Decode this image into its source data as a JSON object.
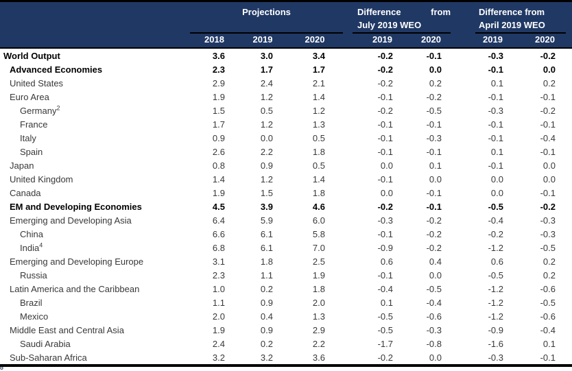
{
  "colors": {
    "header_bg": "#203864",
    "header_text": "#FFFFFF",
    "body_text": "#383838",
    "bold_text": "#000000",
    "border": "#000000"
  },
  "header": {
    "projections_label": "Projections",
    "july_group": {
      "line1_left": "Difference",
      "line1_right": "from",
      "line2": "July 2019 WEO"
    },
    "april_group": {
      "line1": "Difference from",
      "line2": "April 2019 WEO"
    },
    "proj_years": [
      "2018",
      "2019",
      "2020"
    ],
    "july_years": [
      "2019",
      "2020"
    ],
    "april_years": [
      "2019",
      "2020"
    ]
  },
  "footnote_fragment": "o",
  "chart_data": {
    "type": "table",
    "columns": [
      "2018",
      "2019",
      "2020",
      "Diff July 2019 WEO: 2019",
      "Diff July 2019 WEO: 2020",
      "Diff April 2019 WEO: 2019",
      "Diff April 2019 WEO: 2020"
    ],
    "rows": [
      {
        "label": "World Output",
        "sup": "",
        "indent": 0,
        "bold": true,
        "values": [
          "3.6",
          "3.0",
          "3.4",
          "-0.2",
          "-0.1",
          "-0.3",
          "-0.2"
        ]
      },
      {
        "label": "Advanced Economies",
        "sup": "",
        "indent": 1,
        "bold": true,
        "values": [
          "2.3",
          "1.7",
          "1.7",
          "-0.2",
          "0.0",
          "-0.1",
          "0.0"
        ]
      },
      {
        "label": "United States",
        "sup": "",
        "indent": 1,
        "bold": false,
        "values": [
          "2.9",
          "2.4",
          "2.1",
          "-0.2",
          "0.2",
          "0.1",
          "0.2"
        ]
      },
      {
        "label": "Euro Area",
        "sup": "",
        "indent": 1,
        "bold": false,
        "values": [
          "1.9",
          "1.2",
          "1.4",
          "-0.1",
          "-0.2",
          "-0.1",
          "-0.1"
        ]
      },
      {
        "label": "Germany",
        "sup": "2",
        "indent": 2,
        "bold": false,
        "values": [
          "1.5",
          "0.5",
          "1.2",
          "-0.2",
          "-0.5",
          "-0.3",
          "-0.2"
        ]
      },
      {
        "label": "France",
        "sup": "",
        "indent": 2,
        "bold": false,
        "values": [
          "1.7",
          "1.2",
          "1.3",
          "-0.1",
          "-0.1",
          "-0.1",
          "-0.1"
        ]
      },
      {
        "label": "Italy",
        "sup": "",
        "indent": 2,
        "bold": false,
        "values": [
          "0.9",
          "0.0",
          "0.5",
          "-0.1",
          "-0.3",
          "-0.1",
          "-0.4"
        ]
      },
      {
        "label": "Spain",
        "sup": "",
        "indent": 2,
        "bold": false,
        "values": [
          "2.6",
          "2.2",
          "1.8",
          "-0.1",
          "-0.1",
          "0.1",
          "-0.1"
        ]
      },
      {
        "label": "Japan",
        "sup": "",
        "indent": 1,
        "bold": false,
        "values": [
          "0.8",
          "0.9",
          "0.5",
          "0.0",
          "0.1",
          "-0.1",
          "0.0"
        ]
      },
      {
        "label": "United Kingdom",
        "sup": "",
        "indent": 1,
        "bold": false,
        "values": [
          "1.4",
          "1.2",
          "1.4",
          "-0.1",
          "0.0",
          "0.0",
          "0.0"
        ]
      },
      {
        "label": "Canada",
        "sup": "",
        "indent": 1,
        "bold": false,
        "values": [
          "1.9",
          "1.5",
          "1.8",
          "0.0",
          "-0.1",
          "0.0",
          "-0.1"
        ]
      },
      {
        "label": "EM and Developing Economies",
        "sup": "",
        "indent": 1,
        "bold": true,
        "values": [
          "4.5",
          "3.9",
          "4.6",
          "-0.2",
          "-0.1",
          "-0.5",
          "-0.2"
        ]
      },
      {
        "label": "Emerging and Developing Asia",
        "sup": "",
        "indent": 1,
        "bold": false,
        "values": [
          "6.4",
          "5.9",
          "6.0",
          "-0.3",
          "-0.2",
          "-0.4",
          "-0.3"
        ]
      },
      {
        "label": "China",
        "sup": "",
        "indent": 2,
        "bold": false,
        "values": [
          "6.6",
          "6.1",
          "5.8",
          "-0.1",
          "-0.2",
          "-0.2",
          "-0.3"
        ]
      },
      {
        "label": "India",
        "sup": "4",
        "indent": 2,
        "bold": false,
        "values": [
          "6.8",
          "6.1",
          "7.0",
          "-0.9",
          "-0.2",
          "-1.2",
          "-0.5"
        ]
      },
      {
        "label": "Emerging and Developing Europe",
        "sup": "",
        "indent": 1,
        "bold": false,
        "values": [
          "3.1",
          "1.8",
          "2.5",
          "0.6",
          "0.4",
          "0.6",
          "0.2"
        ]
      },
      {
        "label": "Russia",
        "sup": "",
        "indent": 2,
        "bold": false,
        "values": [
          "2.3",
          "1.1",
          "1.9",
          "-0.1",
          "0.0",
          "-0.5",
          "0.2"
        ]
      },
      {
        "label": "Latin America and the Caribbean",
        "sup": "",
        "indent": 1,
        "bold": false,
        "values": [
          "1.0",
          "0.2",
          "1.8",
          "-0.4",
          "-0.5",
          "-1.2",
          "-0.6"
        ]
      },
      {
        "label": "Brazil",
        "sup": "",
        "indent": 2,
        "bold": false,
        "values": [
          "1.1",
          "0.9",
          "2.0",
          "0.1",
          "-0.4",
          "-1.2",
          "-0.5"
        ]
      },
      {
        "label": "Mexico",
        "sup": "",
        "indent": 2,
        "bold": false,
        "values": [
          "2.0",
          "0.4",
          "1.3",
          "-0.5",
          "-0.6",
          "-1.2",
          "-0.6"
        ]
      },
      {
        "label": "Middle East and Central Asia",
        "sup": "",
        "indent": 1,
        "bold": false,
        "values": [
          "1.9",
          "0.9",
          "2.9",
          "-0.5",
          "-0.3",
          "-0.9",
          "-0.4"
        ]
      },
      {
        "label": "Saudi Arabia",
        "sup": "",
        "indent": 2,
        "bold": false,
        "values": [
          "2.4",
          "0.2",
          "2.2",
          "-1.7",
          "-0.8",
          "-1.6",
          "0.1"
        ]
      },
      {
        "label": "Sub-Saharan Africa",
        "sup": "",
        "indent": 1,
        "bold": false,
        "values": [
          "3.2",
          "3.2",
          "3.6",
          "-0.2",
          "0.0",
          "-0.3",
          "-0.1"
        ]
      }
    ]
  }
}
